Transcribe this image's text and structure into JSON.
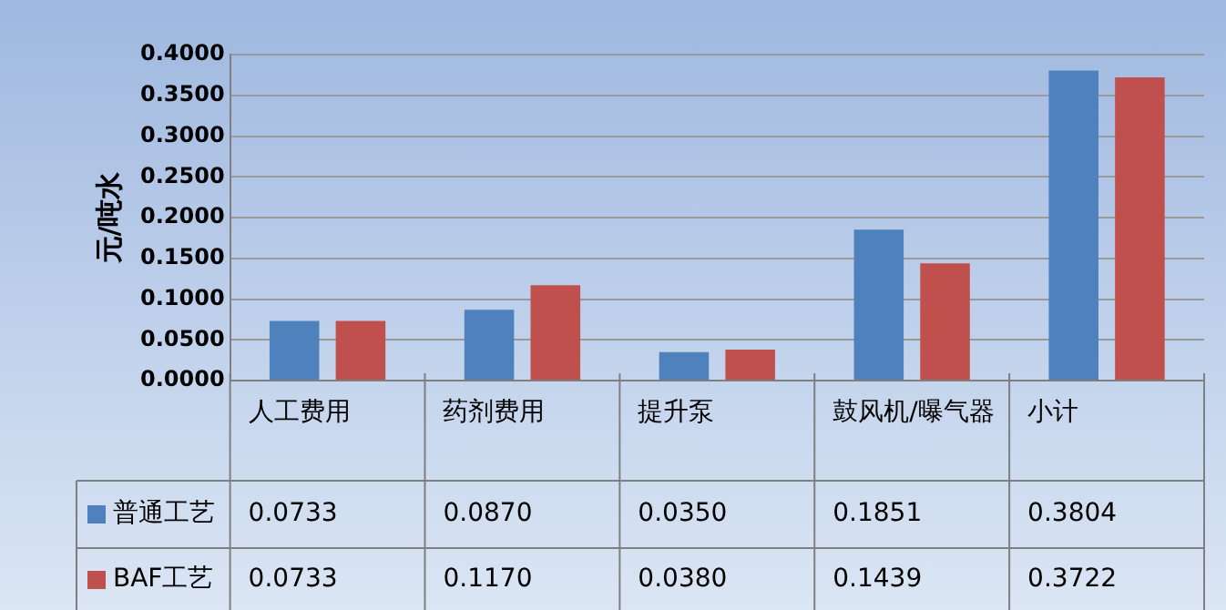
{
  "chart_data": {
    "type": "bar",
    "ylabel": "元/吨水",
    "categories": [
      "人工费用",
      "药剂费用",
      "提升泵",
      "鼓风机/曝气器",
      "小计"
    ],
    "series": [
      {
        "name": "普通工艺",
        "color": "#4f81bd",
        "values": [
          0.0733,
          0.087,
          0.035,
          0.1851,
          0.3804
        ],
        "value_labels": [
          "0.0733",
          "0.0870",
          "0.0350",
          "0.1851",
          "0.3804"
        ]
      },
      {
        "name": "BAF工艺",
        "color": "#c0504d",
        "values": [
          0.0733,
          0.117,
          0.038,
          0.1439,
          0.3722
        ],
        "value_labels": [
          "0.0733",
          "0.1170",
          "0.0380",
          "0.1439",
          "0.3722"
        ]
      }
    ],
    "ylim": [
      0,
      0.4
    ],
    "yticks": [
      {
        "value": 0,
        "label": "0.0000"
      },
      {
        "value": 0.05,
        "label": "0.0500"
      },
      {
        "value": 0.1,
        "label": "0.1000"
      },
      {
        "value": 0.15,
        "label": "0.1500"
      },
      {
        "value": 0.2,
        "label": "0.2000"
      },
      {
        "value": 0.25,
        "label": "0.2500"
      },
      {
        "value": 0.3,
        "label": "0.3000"
      },
      {
        "value": 0.35,
        "label": "0.3500"
      },
      {
        "value": 0.4,
        "label": "0.4000"
      }
    ],
    "grid": "y",
    "legend": "bottom left"
  }
}
